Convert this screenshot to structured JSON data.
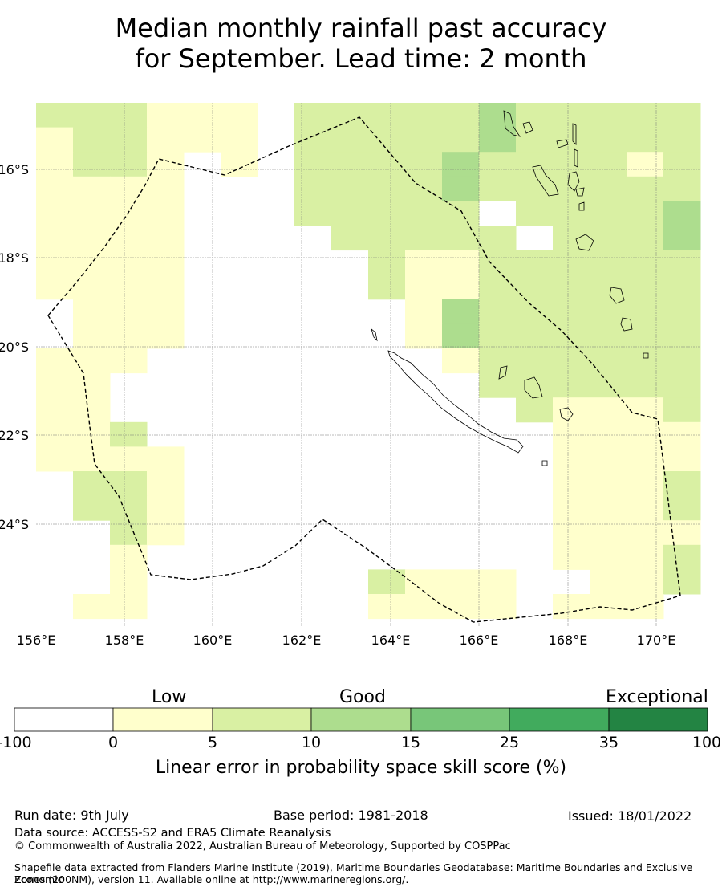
{
  "title_line1": "Median monthly rainfall past accuracy",
  "title_line2": "for September. Lead time: 2 month",
  "map": {
    "lon_range": [
      156,
      171
    ],
    "lat_range": [
      -26.2,
      -14.4
    ],
    "lon_ticks": [
      "156°E",
      "158°E",
      "160°E",
      "162°E",
      "164°E",
      "166°E",
      "168°E",
      "170°E"
    ],
    "lat_ticks": [
      "16°S",
      "18°S",
      "20°S",
      "22°S",
      "24°S"
    ],
    "boundary": "dashed-black",
    "gridlines": true
  },
  "colorbar": {
    "categories": [
      "Low",
      "Good",
      "Exceptional"
    ],
    "ticks": [
      "-100",
      "0",
      "5",
      "10",
      "15",
      "25",
      "35",
      "100"
    ],
    "colors": [
      "#ffffff",
      "#ffffcc",
      "#d9f0a3",
      "#addd8e",
      "#78c679",
      "#41ab5d",
      "#238443"
    ],
    "label": "Linear error in probability space skill score (%)"
  },
  "footer": {
    "run_date": "Run date: 9th July",
    "base_period": "Base period: 1981-2018",
    "issued": "Issued: 18/01/2022",
    "data_source": "Data source: ACCESS-S2 and ERA5 Climate Reanalysis",
    "copyright": "© Commonwealth of Australia 2022, Australian Bureau of Meteorology, Supported by COSPPac",
    "shapefile_line1": "Shapefile data extracted from Flanders Marine Institute (2019), Maritime Boundaries Geodatabase: Maritime Boundaries and Exclusive Economic",
    "shapefile_line2": "Zones (200NM), version 11. Available online at http://www.marineregions.org/."
  }
}
